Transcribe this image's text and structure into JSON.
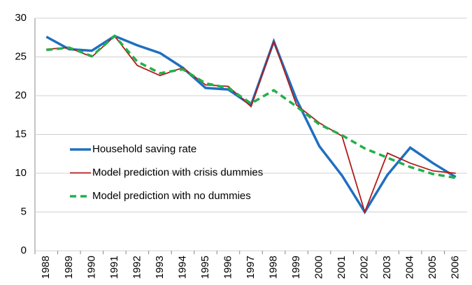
{
  "chart_data": {
    "type": "line",
    "categories": [
      "1988",
      "1989",
      "1990",
      "1991",
      "1992",
      "1993",
      "1994",
      "1995",
      "1996",
      "1997",
      "1998",
      "1999",
      "2000",
      "2001",
      "2002",
      "2003",
      "2004",
      "2005",
      "2006"
    ],
    "series": [
      {
        "name": "Household saving rate",
        "color": "#1f6fc0",
        "dash": false,
        "values": [
          27.6,
          26.0,
          25.8,
          27.7,
          26.5,
          25.5,
          23.6,
          21.0,
          20.8,
          18.8,
          27.0,
          19.5,
          13.5,
          9.7,
          5.0,
          9.8,
          13.3,
          11.3,
          9.5
        ]
      },
      {
        "name": "Model prediction with crisis dummies",
        "color": "#b01c1c",
        "dash": false,
        "values": [
          26.0,
          26.2,
          25.0,
          27.7,
          23.9,
          22.6,
          23.6,
          21.4,
          21.2,
          18.6,
          27.0,
          18.8,
          16.5,
          14.8,
          5.0,
          12.6,
          11.3,
          10.3,
          10.0
        ]
      },
      {
        "name": "Model prediction with no dummies",
        "color": "#22b04b",
        "dash": true,
        "values": [
          25.9,
          26.2,
          25.1,
          27.7,
          24.4,
          22.9,
          23.4,
          21.6,
          21.0,
          19.0,
          20.7,
          18.6,
          16.3,
          14.9,
          13.2,
          12.0,
          10.8,
          9.9,
          9.4
        ]
      }
    ],
    "ylim": [
      0,
      30
    ],
    "yticks": [
      0,
      5,
      10,
      15,
      20,
      25,
      30
    ],
    "grid": true,
    "legend": "left"
  }
}
